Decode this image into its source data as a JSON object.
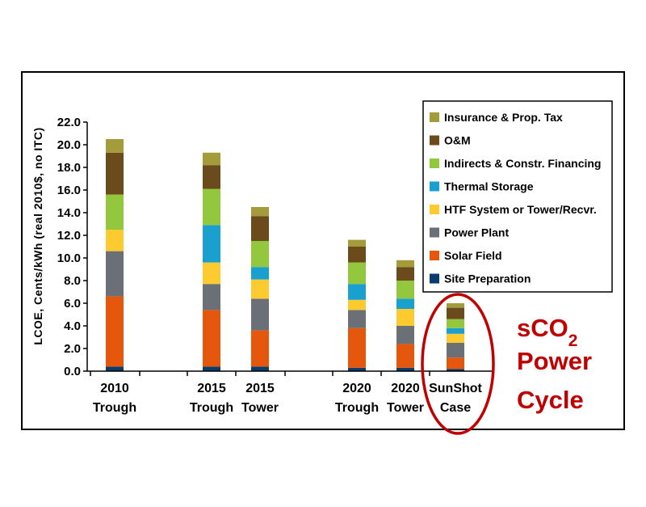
{
  "chart_data": {
    "type": "bar",
    "stacked": true,
    "title": "",
    "xlabel": "",
    "ylabel": "LCOE, Cents/kWh (real 2010$, no ITC)",
    "ylim": [
      0,
      22
    ],
    "yticks": [
      "0.0",
      "2.0",
      "4.0",
      "6.0",
      "8.0",
      "10.0",
      "12.0",
      "14.0",
      "16.0",
      "18.0",
      "20.0",
      "22.0"
    ],
    "categories": [
      {
        "line1": "2010",
        "line2": "Trough"
      },
      {
        "line1": "2015",
        "line2": "Trough"
      },
      {
        "line1": "2015",
        "line2": "Tower"
      },
      {
        "line1": "2020",
        "line2": "Trough"
      },
      {
        "line1": "2020",
        "line2": "Tower"
      },
      {
        "line1": "SunShot",
        "line2": "Case"
      }
    ],
    "legend_position": "top-right",
    "series": [
      {
        "name": "Site Preparation",
        "color": "#0a3d6b",
        "values": [
          0.4,
          0.4,
          0.4,
          0.3,
          0.3,
          0.2
        ]
      },
      {
        "name": "Solar Field",
        "color": "#e4570d",
        "values": [
          6.2,
          5.0,
          3.2,
          3.5,
          2.1,
          1.0
        ]
      },
      {
        "name": "Power Plant",
        "color": "#6b7077",
        "values": [
          4.0,
          2.3,
          2.8,
          1.6,
          1.6,
          1.3
        ]
      },
      {
        "name": "HTF System or Tower/Recvr.",
        "color": "#fdcb2f",
        "values": [
          1.9,
          1.9,
          1.7,
          0.9,
          1.5,
          0.8
        ]
      },
      {
        "name": "Thermal Storage",
        "color": "#1aa0cf",
        "values": [
          0.0,
          3.3,
          1.1,
          1.4,
          0.9,
          0.5
        ]
      },
      {
        "name": "Indirects & Constr. Financing",
        "color": "#93c83e",
        "values": [
          3.1,
          3.2,
          2.3,
          1.9,
          1.6,
          0.8
        ]
      },
      {
        "name": "O&M",
        "color": "#6b4a1b",
        "values": [
          3.7,
          2.1,
          2.2,
          1.4,
          1.2,
          1.0
        ]
      },
      {
        "name": "Insurance & Prop. Tax",
        "color": "#a49c3a",
        "values": [
          1.2,
          1.1,
          0.8,
          0.6,
          0.6,
          0.4
        ]
      }
    ],
    "annotation": {
      "line1": "sCO",
      "subscript": "2",
      "line2": "Power",
      "line3": "Cycle",
      "color": "#c00000"
    }
  }
}
